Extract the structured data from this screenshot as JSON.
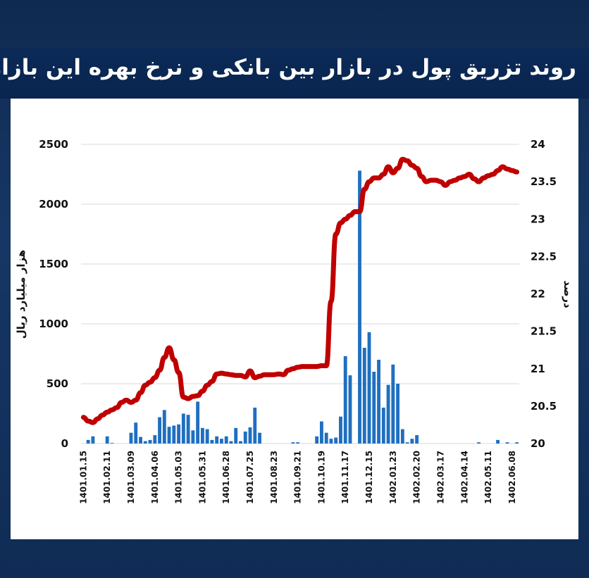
{
  "title": "روند تزریق پول در بازار بین بانکی و نرخ بهره این بازار",
  "colors": {
    "background": "#14335f",
    "banner": "#0b2a57",
    "bar": "#1f6fc0",
    "line": "#c00000",
    "grid": "#d9d9d9"
  },
  "chart_data": {
    "type": "bar+line",
    "ylabel_left": "هزار میلیارد ریال",
    "ylabel_right": "درصد",
    "ylim_left": [
      0,
      2500
    ],
    "ylim_right": [
      20,
      24
    ],
    "yticks_left": [
      "0",
      "500",
      "1000",
      "1500",
      "2000",
      "2500"
    ],
    "yticks_right": [
      "20",
      "20.5",
      "21",
      "21.5",
      "22",
      "22.5",
      "23",
      "23.5",
      "24"
    ],
    "x_tick_labels": [
      "1401.01.15",
      "1401.02.11",
      "1401.03.09",
      "1401.04.06",
      "1401.05.03",
      "1401.05.31",
      "1401.06.28",
      "1401.07.25",
      "1401.08.23",
      "1401.09.21",
      "1401.10.19",
      "1401.11.17",
      "1401.12.15",
      "1402.01.23",
      "1402.02.20",
      "1402.03.17",
      "1402.04.14",
      "1402.05.11",
      "1402.06.08"
    ],
    "n_points": 92,
    "tick_every": 5,
    "grid": true,
    "series": [
      {
        "name": "",
        "type": "bar",
        "axis": "left",
        "values": [
          0,
          30,
          60,
          0,
          0,
          60,
          5,
          0,
          0,
          0,
          90,
          175,
          55,
          20,
          30,
          70,
          220,
          280,
          140,
          150,
          160,
          250,
          240,
          110,
          350,
          130,
          120,
          30,
          60,
          40,
          60,
          20,
          130,
          20,
          100,
          135,
          300,
          90,
          0,
          0,
          0,
          0,
          0,
          0,
          10,
          10,
          0,
          0,
          0,
          60,
          185,
          90,
          40,
          50,
          225,
          730,
          570,
          0,
          2280,
          800,
          930,
          600,
          700,
          300,
          490,
          660,
          500,
          120,
          10,
          40,
          70,
          0,
          0,
          0,
          0,
          0,
          0,
          0,
          0,
          0,
          0,
          0,
          0,
          10,
          0,
          0,
          0,
          30,
          0,
          10,
          0,
          10
        ]
      },
      {
        "name": "",
        "type": "line",
        "axis": "right",
        "values": [
          20.35,
          20.3,
          20.28,
          20.33,
          20.38,
          20.42,
          20.45,
          20.48,
          20.55,
          20.58,
          20.55,
          20.58,
          20.68,
          20.78,
          20.82,
          20.88,
          20.98,
          21.15,
          21.28,
          21.12,
          20.95,
          20.62,
          20.6,
          20.63,
          20.64,
          20.7,
          20.78,
          20.83,
          20.93,
          20.94,
          20.93,
          20.92,
          20.91,
          20.91,
          20.89,
          20.97,
          20.88,
          20.9,
          20.92,
          20.92,
          20.92,
          20.93,
          20.92,
          20.98,
          21.0,
          21.02,
          21.03,
          21.03,
          21.03,
          21.03,
          21.04,
          21.04,
          21.9,
          22.8,
          22.95,
          23.0,
          23.05,
          23.1,
          23.1,
          23.4,
          23.5,
          23.55,
          23.55,
          23.6,
          23.7,
          23.62,
          23.68,
          23.8,
          23.78,
          23.72,
          23.68,
          23.57,
          23.5,
          23.52,
          23.52,
          23.5,
          23.45,
          23.5,
          23.52,
          23.55,
          23.57,
          23.6,
          23.54,
          23.5,
          23.55,
          23.58,
          23.6,
          23.65,
          23.7,
          23.67,
          23.65,
          23.63
        ]
      }
    ]
  }
}
